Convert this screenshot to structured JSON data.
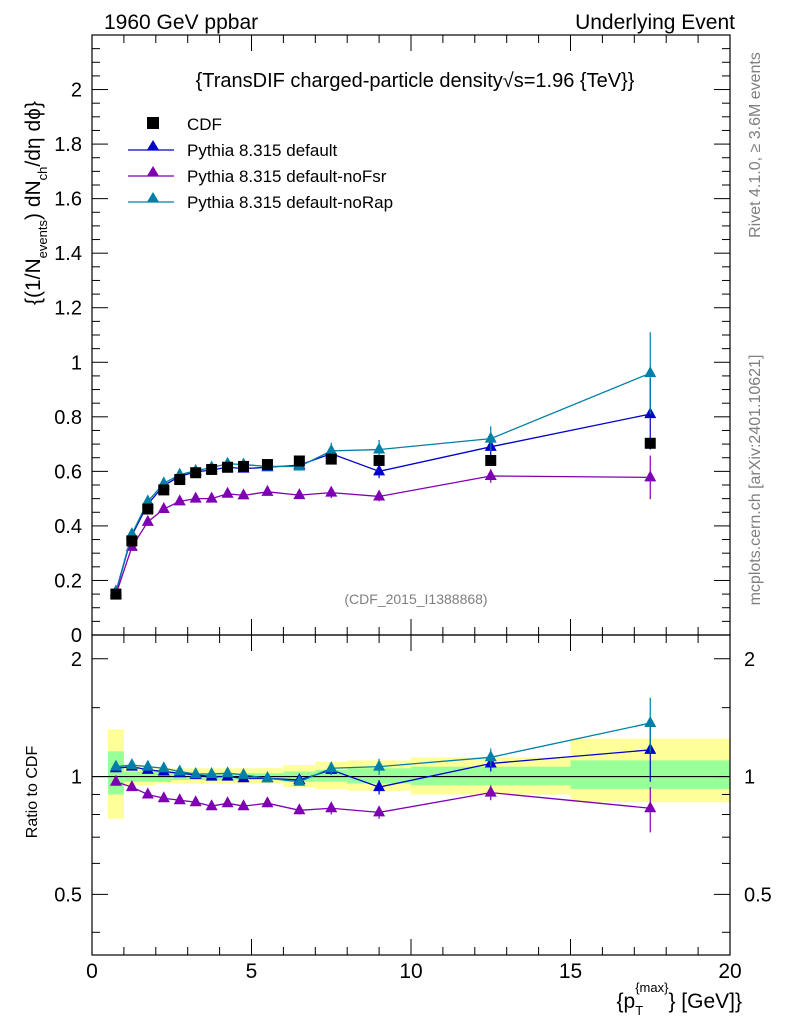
{
  "header": {
    "left": "1960 GeV ppbar",
    "right": "Underlying Event"
  },
  "side": {
    "rivet": "Rivet 4.1.0, ≥ 3.6M events",
    "mcplots": "mcplots.cern.ch [arXiv:2401.10621]"
  },
  "analysis_id": "(CDF_2015_I1388868)",
  "colors": {
    "cdf": "#000000",
    "default": "#0000cc",
    "noFsr": "#7f00b3",
    "noRap": "#0080a6",
    "band_outer": "#ffff99",
    "band_inner": "#99ff99"
  },
  "chart_data": [
    {
      "type": "scatter",
      "panel": "main",
      "title": "{TransDIF charged-particle density√s=1.96 {TeV}}",
      "ylabel_parts": {
        "a": "{(1/N",
        "a_sub": "events",
        "b": ") dN",
        "b_sub": "ch",
        "c": "/dη dϕ}"
      },
      "xlim": [
        0,
        20
      ],
      "ylim": [
        0,
        2.2
      ],
      "yticks": [
        0,
        0.2,
        0.4,
        0.6,
        0.8,
        1,
        1.2,
        1.4,
        1.6,
        1.8,
        2
      ],
      "ytick_labels": [
        "0",
        "0.2",
        "0.4",
        "0.6",
        "0.8",
        "1",
        "1.2",
        "1.4",
        "1.6",
        "1.8",
        "2"
      ],
      "legend": [
        "CDF",
        "Pythia 8.315 default",
        "Pythia 8.315 default-noFsr",
        "Pythia 8.315 default-noRap"
      ],
      "data_series": {
        "name": "CDF",
        "x": [
          0.75,
          1.25,
          1.75,
          2.25,
          2.75,
          3.25,
          3.75,
          4.25,
          4.75,
          5.5,
          6.5,
          7.5,
          9.0,
          12.5,
          17.5
        ],
        "y": [
          0.15,
          0.345,
          0.462,
          0.532,
          0.57,
          0.595,
          0.607,
          0.615,
          0.618,
          0.625,
          0.638,
          0.645,
          0.64,
          0.64,
          0.703
        ]
      },
      "series": [
        {
          "name": "Pythia 8.315 default",
          "color_key": "default",
          "x": [
            0.75,
            1.25,
            1.75,
            2.25,
            2.75,
            3.25,
            3.75,
            4.25,
            4.75,
            5.5,
            6.5,
            7.5,
            9.0,
            12.5,
            17.5
          ],
          "y": [
            0.157,
            0.365,
            0.48,
            0.548,
            0.582,
            0.598,
            0.605,
            0.615,
            0.61,
            0.615,
            0.623,
            0.665,
            0.6,
            0.69,
            0.81
          ],
          "err": [
            0.004,
            0.005,
            0.006,
            0.006,
            0.007,
            0.007,
            0.008,
            0.009,
            0.009,
            0.01,
            0.012,
            0.02,
            0.025,
            0.04,
            0.13
          ]
        },
        {
          "name": "Pythia 8.315 default-noFsr",
          "color_key": "noFsr",
          "x": [
            0.75,
            1.25,
            1.75,
            2.25,
            2.75,
            3.25,
            3.75,
            4.25,
            4.75,
            5.5,
            6.5,
            7.5,
            9.0,
            12.5,
            17.5
          ],
          "y": [
            0.148,
            0.323,
            0.415,
            0.462,
            0.49,
            0.5,
            0.5,
            0.518,
            0.512,
            0.525,
            0.513,
            0.522,
            0.508,
            0.583,
            0.578
          ],
          "err": [
            0.004,
            0.005,
            0.006,
            0.006,
            0.006,
            0.007,
            0.008,
            0.009,
            0.009,
            0.01,
            0.01,
            0.02,
            0.018,
            0.025,
            0.08
          ]
        },
        {
          "name": "Pythia 8.315 default-noRap",
          "color_key": "noRap",
          "x": [
            0.75,
            1.25,
            1.75,
            2.25,
            2.75,
            3.25,
            3.75,
            4.25,
            4.75,
            5.5,
            6.5,
            7.5,
            9.0,
            12.5,
            17.5
          ],
          "y": [
            0.16,
            0.37,
            0.49,
            0.556,
            0.588,
            0.602,
            0.614,
            0.628,
            0.625,
            0.618,
            0.618,
            0.675,
            0.68,
            0.72,
            0.96
          ],
          "err": [
            0.004,
            0.005,
            0.006,
            0.006,
            0.007,
            0.007,
            0.008,
            0.009,
            0.009,
            0.01,
            0.012,
            0.03,
            0.035,
            0.045,
            0.15
          ]
        }
      ]
    },
    {
      "type": "line",
      "panel": "ratio",
      "ylabel": "Ratio to CDF",
      "xlabel_parts": {
        "a": "{p",
        "sub": "T",
        "sup": "{max}",
        "b": "} [GeV]}"
      },
      "xlim": [
        0,
        20
      ],
      "ylim": [
        0.35,
        2.3
      ],
      "yscale": "log",
      "xticks": [
        0,
        5,
        10,
        15,
        20
      ],
      "xtick_labels": [
        "0",
        "5",
        "10",
        "15",
        "20"
      ],
      "yticks_labeled": [
        0.5,
        1,
        2
      ],
      "ytick_labels": [
        "0.5",
        "1",
        "2"
      ],
      "bins": [
        [
          0.5,
          1.0
        ],
        [
          1.0,
          1.5
        ],
        [
          1.5,
          2.0
        ],
        [
          2.0,
          2.5
        ],
        [
          2.5,
          3.0
        ],
        [
          3.0,
          3.5
        ],
        [
          3.5,
          4.0
        ],
        [
          4.0,
          4.5
        ],
        [
          4.5,
          5.0
        ],
        [
          5.0,
          6.0
        ],
        [
          6.0,
          7.0
        ],
        [
          7.0,
          8.0
        ],
        [
          8.0,
          10.0
        ],
        [
          10.0,
          15.0
        ],
        [
          15.0,
          20.0
        ]
      ],
      "band_inner": [
        [
          0.9,
          1.16
        ],
        [
          0.97,
          1.03
        ],
        [
          0.97,
          1.03
        ],
        [
          0.97,
          1.03
        ],
        [
          0.98,
          1.02
        ],
        [
          0.98,
          1.02
        ],
        [
          0.98,
          1.02
        ],
        [
          0.98,
          1.02
        ],
        [
          0.98,
          1.02
        ],
        [
          0.98,
          1.02
        ],
        [
          0.97,
          1.03
        ],
        [
          0.97,
          1.04
        ],
        [
          0.96,
          1.05
        ],
        [
          0.95,
          1.06
        ],
        [
          0.93,
          1.1
        ]
      ],
      "band_outer": [
        [
          0.78,
          1.32
        ],
        [
          0.95,
          1.06
        ],
        [
          0.95,
          1.06
        ],
        [
          0.96,
          1.05
        ],
        [
          0.96,
          1.05
        ],
        [
          0.96,
          1.05
        ],
        [
          0.96,
          1.05
        ],
        [
          0.96,
          1.05
        ],
        [
          0.96,
          1.05
        ],
        [
          0.96,
          1.05
        ],
        [
          0.94,
          1.07
        ],
        [
          0.93,
          1.09
        ],
        [
          0.92,
          1.1
        ],
        [
          0.9,
          1.12
        ],
        [
          0.86,
          1.25
        ]
      ],
      "series": [
        {
          "name": "Pythia 8.315 default",
          "color_key": "default",
          "x": [
            0.75,
            1.25,
            1.75,
            2.25,
            2.75,
            3.25,
            3.75,
            4.25,
            4.75,
            5.5,
            6.5,
            7.5,
            9.0,
            12.5,
            17.5
          ],
          "y": [
            1.05,
            1.06,
            1.04,
            1.03,
            1.02,
            1.01,
            1.0,
            1.0,
            0.99,
            0.99,
            0.98,
            1.04,
            0.94,
            1.08,
            1.17
          ],
          "err": [
            0.015,
            0.015,
            0.015,
            0.015,
            0.015,
            0.015,
            0.015,
            0.015,
            0.015,
            0.02,
            0.02,
            0.03,
            0.04,
            0.05,
            0.2
          ]
        },
        {
          "name": "Pythia 8.315 default-noFsr",
          "color_key": "noFsr",
          "x": [
            0.75,
            1.25,
            1.75,
            2.25,
            2.75,
            3.25,
            3.75,
            4.25,
            4.75,
            5.5,
            6.5,
            7.5,
            9.0,
            12.5,
            17.5
          ],
          "y": [
            0.97,
            0.94,
            0.9,
            0.88,
            0.87,
            0.86,
            0.84,
            0.855,
            0.84,
            0.855,
            0.82,
            0.83,
            0.81,
            0.91,
            0.83
          ],
          "err": [
            0.015,
            0.015,
            0.015,
            0.015,
            0.015,
            0.015,
            0.015,
            0.015,
            0.015,
            0.02,
            0.02,
            0.03,
            0.03,
            0.04,
            0.11
          ]
        },
        {
          "name": "Pythia 8.315 default-noRap",
          "color_key": "noRap",
          "x": [
            0.75,
            1.25,
            1.75,
            2.25,
            2.75,
            3.25,
            3.75,
            4.25,
            4.75,
            5.5,
            6.5,
            7.5,
            9.0,
            12.5,
            17.5
          ],
          "y": [
            1.06,
            1.07,
            1.06,
            1.05,
            1.03,
            1.015,
            1.015,
            1.02,
            1.01,
            0.99,
            0.97,
            1.05,
            1.06,
            1.12,
            1.37
          ],
          "err": [
            0.015,
            0.015,
            0.015,
            0.015,
            0.015,
            0.015,
            0.015,
            0.015,
            0.015,
            0.02,
            0.02,
            0.04,
            0.05,
            0.06,
            0.22
          ]
        }
      ]
    }
  ]
}
